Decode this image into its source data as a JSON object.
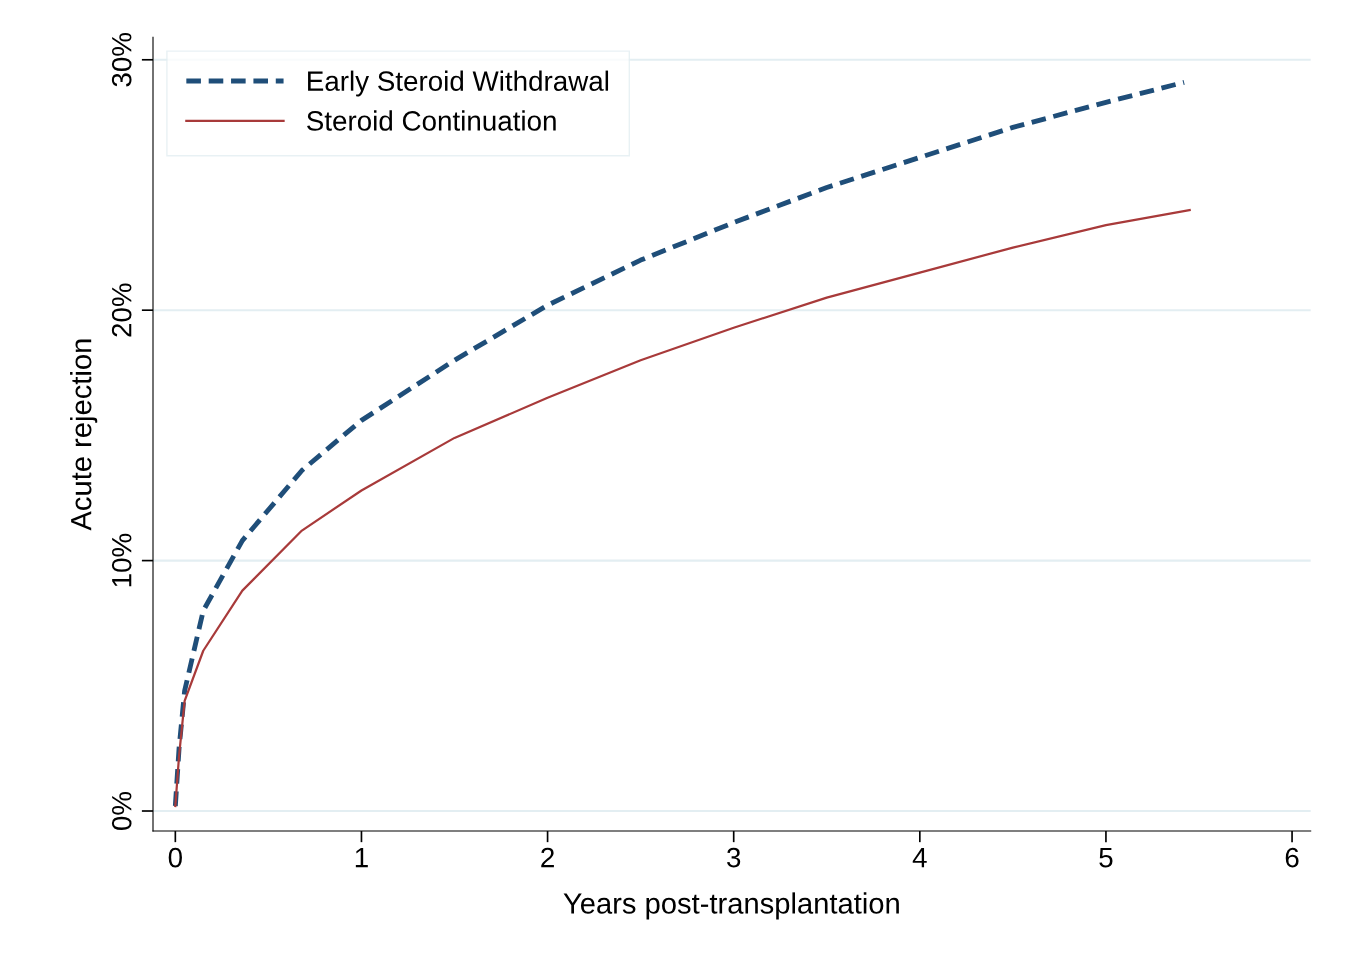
{
  "chart_data": {
    "type": "line",
    "xlabel": "Years post-transplantation",
    "ylabel": "Acute rejection",
    "xlim": [
      -0.12,
      6.1
    ],
    "ylim": [
      -0.8,
      30.9
    ],
    "xticks": [
      0,
      1,
      2,
      3,
      4,
      5,
      6
    ],
    "yticks": [
      {
        "value": 0,
        "label": "0%"
      },
      {
        "value": 10,
        "label": "10%"
      },
      {
        "value": 20,
        "label": "20%"
      },
      {
        "value": 30,
        "label": "30%"
      }
    ],
    "grid": "y",
    "legend": "top left",
    "series": [
      {
        "name": "Early Steroid Withdrawal",
        "color": "#1f4e79",
        "line_style": "dashed",
        "x": [
          0,
          0.02,
          0.05,
          0.15,
          0.36,
          0.68,
          1.0,
          1.5,
          2.0,
          2.5,
          3.0,
          3.5,
          4.0,
          4.5,
          5.0,
          5.42
        ],
        "values": [
          0.2,
          2.5,
          4.8,
          8.0,
          10.8,
          13.6,
          15.6,
          18.0,
          20.2,
          22.0,
          23.5,
          24.9,
          26.1,
          27.3,
          28.3,
          29.1
        ]
      },
      {
        "name": "Steroid Continuation",
        "color": "#a83a3a",
        "line_style": "solid",
        "x": [
          0,
          0.02,
          0.05,
          0.15,
          0.36,
          0.68,
          1.0,
          1.5,
          2.0,
          2.5,
          3.0,
          3.5,
          4.0,
          4.5,
          5.0,
          5.45
        ],
        "values": [
          0.2,
          2.2,
          4.4,
          6.4,
          8.8,
          11.2,
          12.8,
          14.9,
          16.5,
          18.0,
          19.3,
          20.5,
          21.5,
          22.5,
          23.4,
          24.0
        ]
      }
    ]
  }
}
